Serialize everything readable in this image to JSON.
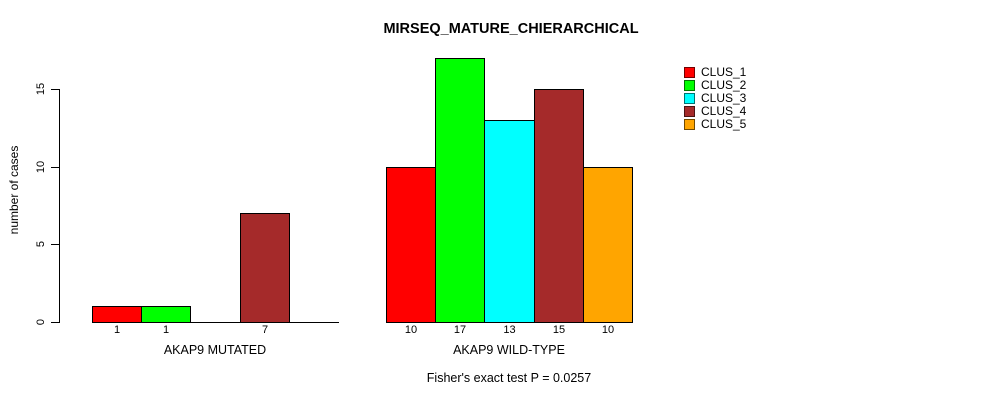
{
  "chart_data": {
    "type": "bar",
    "title": "MIRSEQ_MATURE_CHIERARCHICAL",
    "xlabel": "",
    "ylabel": "number of cases",
    "ylim": [
      0,
      17
    ],
    "yticks": [
      "0",
      "5",
      "10",
      "15"
    ],
    "grid": false,
    "categories": [
      "CLUS_1",
      "CLUS_2",
      "CLUS_3",
      "CLUS_4",
      "CLUS_5"
    ],
    "bar_colors": [
      "#FF0000",
      "#00FF00",
      "#00FFFF",
      "#A52A2A",
      "#FFA500"
    ],
    "bar_border_color": "#000000",
    "axis_color": "#000000",
    "groups": [
      {
        "label": "AKAP9 MUTATED",
        "values": [
          1,
          1,
          0,
          7,
          0
        ],
        "bar_labels": [
          "1",
          "1",
          "",
          "7",
          ""
        ]
      },
      {
        "label": "AKAP9 WILD-TYPE",
        "values": [
          10,
          17,
          13,
          15,
          10
        ],
        "bar_labels": [
          "10",
          "17",
          "13",
          "15",
          "10"
        ]
      }
    ],
    "legend": {
      "position": "right",
      "entries": [
        {
          "label": "CLUS_1",
          "color": "#FF0000"
        },
        {
          "label": "CLUS_2",
          "color": "#00FF00"
        },
        {
          "label": "CLUS_3",
          "color": "#00FFFF"
        },
        {
          "label": "CLUS_4",
          "color": "#A52A2A"
        },
        {
          "label": "CLUS_5",
          "color": "#FFA500"
        }
      ]
    },
    "annotation": "Fisher's exact test P = 0.0257"
  }
}
